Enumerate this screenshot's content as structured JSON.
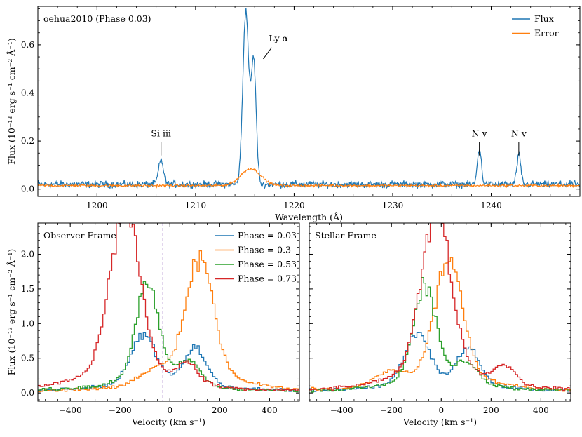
{
  "chart_data": [
    {
      "type": "line",
      "title": "oehua2010 (Phase 0.03)",
      "xlabel": "Wavelength (Å)",
      "ylabel": "Flux (10⁻¹³ erg s⁻¹ cm⁻² Å⁻¹)",
      "xlim": [
        1194,
        1249
      ],
      "ylim": [
        -0.03,
        0.76
      ],
      "xticks": [
        1200,
        1210,
        1220,
        1230,
        1240
      ],
      "yticks": [
        0.0,
        0.2,
        0.4,
        0.6
      ],
      "ytick_labels": [
        "0.0",
        "0.2",
        "0.4",
        "0.6"
      ],
      "legend_position": "top-right",
      "series": [
        {
          "name": "Flux",
          "color": "#1f77b4",
          "baseline": 0.02,
          "noise": 0.012,
          "features": [
            {
              "center": 1206.5,
              "width": 0.25,
              "peak": 0.1
            },
            {
              "center": 1215.1,
              "width": 0.3,
              "peak": 0.72
            },
            {
              "center": 1215.9,
              "width": 0.25,
              "peak": 0.51
            },
            {
              "center": 1238.8,
              "width": 0.2,
              "peak": 0.15
            },
            {
              "center": 1242.8,
              "width": 0.2,
              "peak": 0.12
            }
          ]
        },
        {
          "name": "Error",
          "color": "#ff7f0e",
          "baseline": 0.015,
          "noise": 0.004,
          "features": [
            {
              "center": 1215.6,
              "width": 1.0,
              "peak": 0.07
            }
          ]
        }
      ],
      "annotations": [
        {
          "text": "Si iii",
          "x": 1206.5,
          "y": 0.21
        },
        {
          "text": "Ly α",
          "x": 1216.3,
          "y": 0.6
        },
        {
          "text": "N v",
          "x": 1238.8,
          "y": 0.21
        },
        {
          "text": "N v",
          "x": 1242.8,
          "y": 0.21
        }
      ]
    },
    {
      "type": "line",
      "title": "Observer Frame",
      "xlabel": "Velocity (km s⁻¹)",
      "ylabel": "Flux (10⁻¹³ erg s⁻¹ cm⁻² Å⁻¹)",
      "xlim": [
        -530,
        520
      ],
      "ylim": [
        -0.12,
        2.45
      ],
      "xticks": [
        -400,
        -200,
        0,
        200,
        400
      ],
      "xtick_labels": [
        "−400",
        "−200",
        "0",
        "200",
        "400"
      ],
      "yticks": [
        0.0,
        0.5,
        1.0,
        1.5,
        2.0
      ],
      "ytick_labels": [
        "0.0",
        "0.5",
        "1.0",
        "1.5",
        "2.0"
      ],
      "vline_x": -28,
      "vline_color": "#9467bd",
      "legend_position": "top-right",
      "series": [
        {
          "name": "Phase = 0.03",
          "color": "#1f77b4",
          "features": [
            [
              -110,
              0.7,
              50
            ],
            [
              95,
              0.5,
              45
            ]
          ]
        },
        {
          "name": "Phase = 0.3",
          "color": "#ff7f0e",
          "features": [
            [
              -60,
              0.18,
              60
            ],
            [
              115,
              1.7,
              55
            ]
          ]
        },
        {
          "name": "Phase = 0.53",
          "color": "#2ca02c",
          "features": [
            [
              -95,
              1.35,
              45
            ],
            [
              70,
              0.3,
              45
            ]
          ]
        },
        {
          "name": "Phase = 0.73",
          "color": "#d62728",
          "features": [
            [
              -185,
              2.3,
              60
            ],
            [
              65,
              0.25,
              40
            ]
          ]
        }
      ]
    },
    {
      "type": "line",
      "title": "Stellar Frame",
      "xlabel": "Velocity (km s⁻¹)",
      "xlim": [
        -530,
        520
      ],
      "ylim": [
        -0.12,
        2.45
      ],
      "xticks": [
        -400,
        -200,
        0,
        200,
        400
      ],
      "xtick_labels": [
        "−400",
        "−200",
        "0",
        "200",
        "400"
      ],
      "series": [
        {
          "color": "#1f77b4",
          "features": [
            [
              -100,
              0.7,
              50
            ],
            [
              105,
              0.5,
              45
            ]
          ]
        },
        {
          "color": "#ff7f0e",
          "features": [
            [
              -210,
              0.18,
              60
            ],
            [
              25,
              1.7,
              55
            ]
          ]
        },
        {
          "color": "#2ca02c",
          "features": [
            [
              -70,
              1.35,
              45
            ],
            [
              95,
              0.3,
              45
            ]
          ]
        },
        {
          "color": "#d62728",
          "features": [
            [
              -25,
              2.3,
              60
            ],
            [
              250,
              0.25,
              40
            ]
          ]
        }
      ]
    }
  ]
}
